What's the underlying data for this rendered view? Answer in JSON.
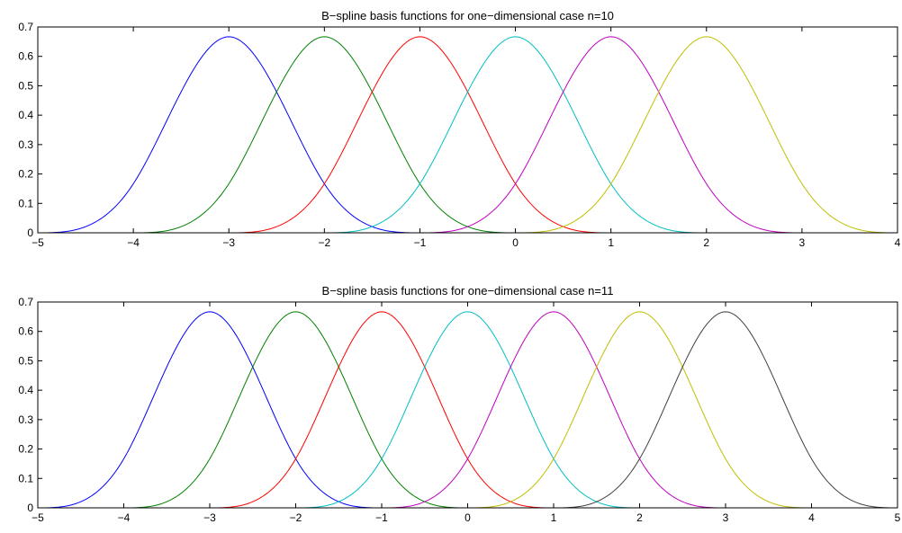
{
  "chart_data": [
    {
      "type": "line",
      "title": "B−spline basis functions for one−dimensional case n=10",
      "xlabel": "",
      "ylabel": "",
      "xlim": [
        -5,
        4
      ],
      "ylim": [
        0,
        0.7
      ],
      "xticks": [
        "−5",
        "−4",
        "−3",
        "−2",
        "−1",
        "0",
        "1",
        "2",
        "3",
        "4"
      ],
      "xtick_values": [
        -5,
        -4,
        -3,
        -2,
        -1,
        0,
        1,
        2,
        3,
        4
      ],
      "yticks": [
        "0",
        "0.1",
        "0.2",
        "0.3",
        "0.4",
        "0.5",
        "0.6",
        "0.7"
      ],
      "ytick_values": [
        0,
        0.1,
        0.2,
        0.3,
        0.4,
        0.5,
        0.6,
        0.7
      ],
      "grid": false,
      "basis": "cubic B-spline",
      "series": [
        {
          "center": -3,
          "support": [
            -5,
            -1
          ],
          "peak": 0.6667,
          "color": "#0000ff"
        },
        {
          "center": -2,
          "support": [
            -4,
            0
          ],
          "peak": 0.6667,
          "color": "#008000"
        },
        {
          "center": -1,
          "support": [
            -3,
            1
          ],
          "peak": 0.6667,
          "color": "#ff0000"
        },
        {
          "center": 0,
          "support": [
            -2,
            2
          ],
          "peak": 0.6667,
          "color": "#00bfbf"
        },
        {
          "center": 1,
          "support": [
            -1,
            3
          ],
          "peak": 0.6667,
          "color": "#bf00bf"
        },
        {
          "center": 2,
          "support": [
            0,
            4
          ],
          "peak": 0.6667,
          "color": "#bfbf00"
        }
      ]
    },
    {
      "type": "line",
      "title": "B−spline basis functions for one−dimensional case n=11",
      "xlabel": "",
      "ylabel": "",
      "xlim": [
        -5,
        5
      ],
      "ylim": [
        0,
        0.7
      ],
      "xticks": [
        "−5",
        "−4",
        "−3",
        "−2",
        "−1",
        "0",
        "1",
        "2",
        "3",
        "4",
        "5"
      ],
      "xtick_values": [
        -5,
        -4,
        -3,
        -2,
        -1,
        0,
        1,
        2,
        3,
        4,
        5
      ],
      "yticks": [
        "0",
        "0.1",
        "0.2",
        "0.3",
        "0.4",
        "0.5",
        "0.6",
        "0.7"
      ],
      "ytick_values": [
        0,
        0.1,
        0.2,
        0.3,
        0.4,
        0.5,
        0.6,
        0.7
      ],
      "grid": false,
      "basis": "cubic B-spline",
      "series": [
        {
          "center": -3,
          "support": [
            -5,
            -1
          ],
          "peak": 0.6667,
          "color": "#0000ff"
        },
        {
          "center": -2,
          "support": [
            -4,
            0
          ],
          "peak": 0.6667,
          "color": "#008000"
        },
        {
          "center": -1,
          "support": [
            -3,
            1
          ],
          "peak": 0.6667,
          "color": "#ff0000"
        },
        {
          "center": 0,
          "support": [
            -2,
            2
          ],
          "peak": 0.6667,
          "color": "#00bfbf"
        },
        {
          "center": 1,
          "support": [
            -1,
            3
          ],
          "peak": 0.6667,
          "color": "#bf00bf"
        },
        {
          "center": 2,
          "support": [
            0,
            4
          ],
          "peak": 0.6667,
          "color": "#bfbf00"
        },
        {
          "center": 3,
          "support": [
            1,
            5
          ],
          "peak": 0.6667,
          "color": "#404040"
        }
      ]
    }
  ]
}
